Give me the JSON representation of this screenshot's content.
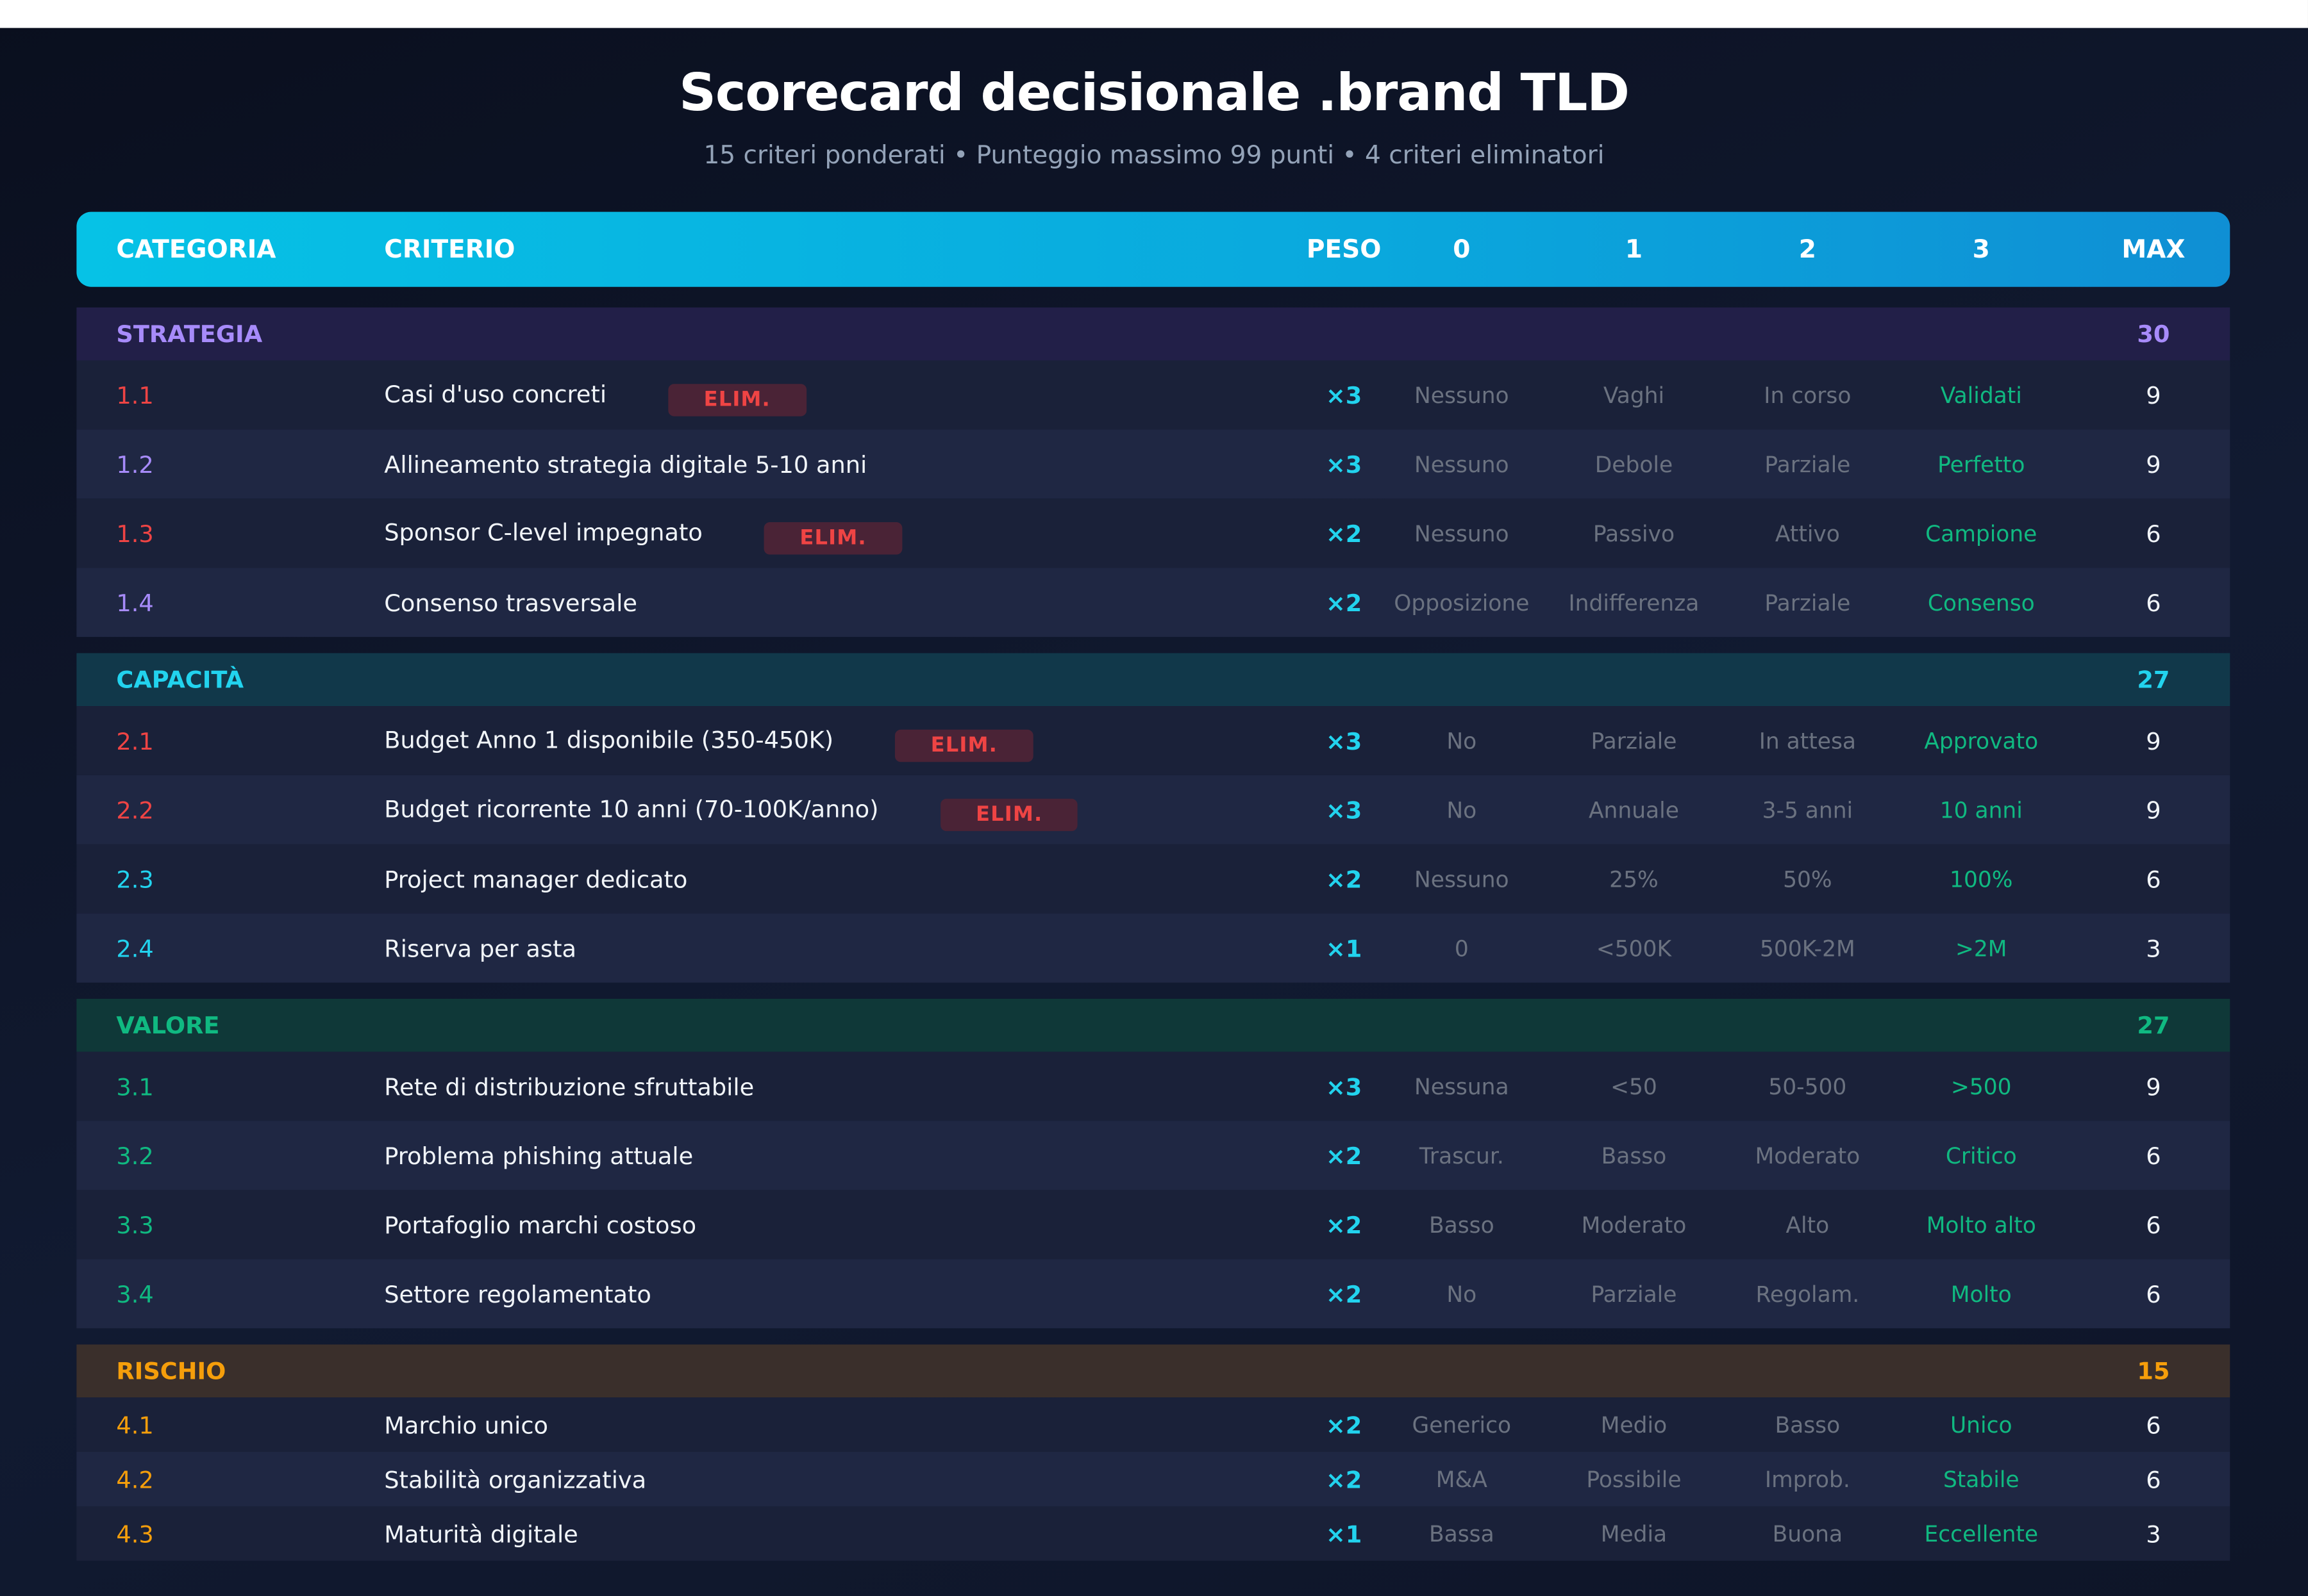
{
  "header": {
    "title": "Scorecard decisionale .brand TLD",
    "subtitle": "15 criteri ponderati • Punteggio massimo 99 punti • 4 criteri eliminatori"
  },
  "table": {
    "columns": [
      "CATEGORIA",
      "CRITERIO",
      "PESO",
      "0",
      "1",
      "2",
      "3",
      "MAX"
    ],
    "sections": [
      {
        "name": "STRATEGIA",
        "max": "30",
        "rows": [
          {
            "id": "1.1",
            "criterion": "Casi d'uso concreti",
            "badge": "ELIM.",
            "weight": "×3",
            "levels": [
              "Nessuno",
              "Vaghi",
              "In corso",
              "Validati"
            ],
            "max": "9"
          },
          {
            "id": "1.2",
            "criterion": "Allineamento strategia digitale 5-10 anni",
            "weight": "×3",
            "levels": [
              "Nessuno",
              "Debole",
              "Parziale",
              "Perfetto"
            ],
            "max": "9"
          },
          {
            "id": "1.3",
            "criterion": "Sponsor C-level impegnato",
            "badge": "ELIM.",
            "weight": "×2",
            "levels": [
              "Nessuno",
              "Passivo",
              "Attivo",
              "Campione"
            ],
            "max": "6"
          },
          {
            "id": "1.4",
            "criterion": "Consenso trasversale",
            "weight": "×2",
            "levels": [
              "Opposizione",
              "Indifferenza",
              "Parziale",
              "Consenso"
            ],
            "max": "6"
          }
        ]
      },
      {
        "name": "CAPACITÀ",
        "max": "27",
        "rows": [
          {
            "id": "2.1",
            "criterion": "Budget Anno 1 disponibile (350-450K)",
            "badge": "ELIM.",
            "weight": "×3",
            "levels": [
              "No",
              "Parziale",
              "In attesa",
              "Approvato"
            ],
            "max": "9"
          },
          {
            "id": "2.2",
            "criterion": "Budget ricorrente 10 anni (70-100K/anno)",
            "badge": "ELIM.",
            "weight": "×3",
            "levels": [
              "No",
              "Annuale",
              "3-5 anni",
              "10 anni"
            ],
            "max": "9"
          },
          {
            "id": "2.3",
            "criterion": "Project manager dedicato",
            "weight": "×2",
            "levels": [
              "Nessuno",
              "25%",
              "50%",
              "100%"
            ],
            "max": "6"
          },
          {
            "id": "2.4",
            "criterion": "Riserva per asta",
            "weight": "×1",
            "levels": [
              "0",
              "<500K",
              "500K-2M",
              ">2M"
            ],
            "max": "3"
          }
        ]
      },
      {
        "name": "VALORE",
        "max": "27",
        "rows": [
          {
            "id": "3.1",
            "criterion": "Rete di distribuzione sfruttabile",
            "weight": "×3",
            "levels": [
              "Nessuna",
              "<50",
              "50-500",
              ">500"
            ],
            "max": "9"
          },
          {
            "id": "3.2",
            "criterion": "Problema phishing attuale",
            "weight": "×2",
            "levels": [
              "Trascur.",
              "Basso",
              "Moderato",
              "Critico"
            ],
            "max": "6"
          },
          {
            "id": "3.3",
            "criterion": "Portafoglio marchi costoso",
            "weight": "×2",
            "levels": [
              "Basso",
              "Moderato",
              "Alto",
              "Molto alto"
            ],
            "max": "6"
          },
          {
            "id": "3.4",
            "criterion": "Settore regolamentato",
            "weight": "×2",
            "levels": [
              "No",
              "Parziale",
              "Regolam.",
              "Molto"
            ],
            "max": "6"
          }
        ]
      },
      {
        "name": "RISCHIO",
        "max": "15",
        "rows": [
          {
            "id": "4.1",
            "criterion": "Marchio unico",
            "weight": "×2",
            "levels": [
              "Generico",
              "Medio",
              "Basso",
              "Unico"
            ],
            "max": "6"
          },
          {
            "id": "4.2",
            "criterion": "Stabilità organizzativa",
            "weight": "×2",
            "levels": [
              "M&A",
              "Possibile",
              "Improb.",
              "Stabile"
            ],
            "max": "6"
          },
          {
            "id": "4.3",
            "criterion": "Maturità digitale",
            "weight": "×1",
            "levels": [
              "Bassa",
              "Media",
              "Buona",
              "Eccellente"
            ],
            "max": "3"
          }
        ]
      }
    ]
  }
}
